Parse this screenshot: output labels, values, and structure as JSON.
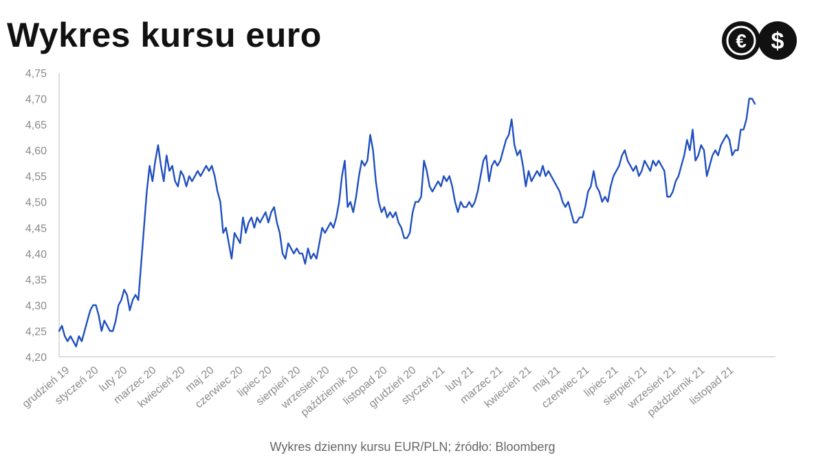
{
  "header": {
    "title": "Wykres kursu euro"
  },
  "logo": {
    "euro_icon": "euro-coin-icon",
    "dollar_icon": "dollar-coin-icon",
    "euro_glyph": "€",
    "dollar_glyph": "$"
  },
  "caption": "Wykres dzienny kursu EUR/PLN; źródło: Bloomberg",
  "colors": {
    "line": "#1f4fbf",
    "axis": "#c8c8c8",
    "tick_text": "#8a8a8a",
    "logo": "#111111"
  },
  "chart_data": {
    "type": "line",
    "title": "",
    "xlabel": "",
    "ylabel": "",
    "ylim": [
      4.2,
      4.75
    ],
    "yticks": [
      "4,20",
      "4,25",
      "4,30",
      "4,35",
      "4,40",
      "4,45",
      "4,50",
      "4,55",
      "4,60",
      "4,65",
      "4,70",
      "4,75"
    ],
    "ytick_values": [
      4.2,
      4.25,
      4.3,
      4.35,
      4.4,
      4.45,
      4.5,
      4.55,
      4.6,
      4.65,
      4.7,
      4.75
    ],
    "x_tick_labels": [
      "grudzień 19",
      "styczeń 20",
      "luty 20",
      "marzec 20",
      "kwiecień 20",
      "maj 20",
      "czerwiec 20",
      "lipiec 20",
      "sierpień 20",
      "wrzesień 20",
      "październik 20",
      "listopad 20",
      "grudzień 20",
      "styczeń 21",
      "luty 21",
      "marzec 21",
      "kwiecień 21",
      "maj 21",
      "czerwiec 21",
      "lipiec 21",
      "sierpień 21",
      "wrzesień 21",
      "październik 21",
      "listopad 21"
    ],
    "grid": false,
    "legend": "none",
    "series": [
      {
        "values": [
          4.25,
          4.26,
          4.24,
          4.23,
          4.24,
          4.23,
          4.22,
          4.24,
          4.23,
          4.25,
          4.27,
          4.29,
          4.3,
          4.3,
          4.28,
          4.25,
          4.27,
          4.26,
          4.25,
          4.25,
          4.27,
          4.3,
          4.31,
          4.33,
          4.32,
          4.29,
          4.31,
          4.32,
          4.31,
          4.38,
          4.45,
          4.52,
          4.57,
          4.54,
          4.58,
          4.61,
          4.57,
          4.54,
          4.59,
          4.56,
          4.57,
          4.54,
          4.53,
          4.56,
          4.55,
          4.53,
          4.55,
          4.54,
          4.55,
          4.56,
          4.55,
          4.56,
          4.57,
          4.56,
          4.57,
          4.55,
          4.52,
          4.5,
          4.44,
          4.45,
          4.42,
          4.39,
          4.44,
          4.43,
          4.42,
          4.47,
          4.44,
          4.46,
          4.47,
          4.45,
          4.47,
          4.46,
          4.47,
          4.48,
          4.46,
          4.48,
          4.49,
          4.46,
          4.44,
          4.4,
          4.39,
          4.42,
          4.41,
          4.4,
          4.41,
          4.4,
          4.4,
          4.38,
          4.41,
          4.39,
          4.4,
          4.39,
          4.42,
          4.45,
          4.44,
          4.45,
          4.46,
          4.45,
          4.47,
          4.5,
          4.55,
          4.58,
          4.49,
          4.5,
          4.48,
          4.51,
          4.55,
          4.58,
          4.57,
          4.58,
          4.63,
          4.6,
          4.54,
          4.5,
          4.48,
          4.49,
          4.47,
          4.48,
          4.47,
          4.48,
          4.46,
          4.45,
          4.43,
          4.43,
          4.44,
          4.48,
          4.5,
          4.5,
          4.51,
          4.58,
          4.56,
          4.53,
          4.52,
          4.53,
          4.54,
          4.53,
          4.55,
          4.54,
          4.55,
          4.53,
          4.5,
          4.48,
          4.5,
          4.49,
          4.49,
          4.5,
          4.49,
          4.5,
          4.52,
          4.55,
          4.58,
          4.59,
          4.54,
          4.57,
          4.58,
          4.57,
          4.58,
          4.6,
          4.62,
          4.63,
          4.66,
          4.61,
          4.59,
          4.6,
          4.57,
          4.53,
          4.56,
          4.54,
          4.55,
          4.56,
          4.55,
          4.57,
          4.55,
          4.56,
          4.55,
          4.54,
          4.53,
          4.52,
          4.5,
          4.49,
          4.5,
          4.48,
          4.46,
          4.46,
          4.47,
          4.47,
          4.49,
          4.52,
          4.53,
          4.56,
          4.53,
          4.52,
          4.5,
          4.51,
          4.5,
          4.53,
          4.55,
          4.56,
          4.57,
          4.59,
          4.6,
          4.58,
          4.57,
          4.56,
          4.57,
          4.55,
          4.56,
          4.58,
          4.57,
          4.56,
          4.58,
          4.57,
          4.58,
          4.57,
          4.56,
          4.51,
          4.51,
          4.52,
          4.54,
          4.55,
          4.57,
          4.59,
          4.62,
          4.6,
          4.64,
          4.58,
          4.59,
          4.61,
          4.6,
          4.55,
          4.57,
          4.59,
          4.6,
          4.59,
          4.61,
          4.62,
          4.63,
          4.62,
          4.59,
          4.6,
          4.6,
          4.64,
          4.64,
          4.66,
          4.7,
          4.7,
          4.69
        ]
      }
    ]
  }
}
